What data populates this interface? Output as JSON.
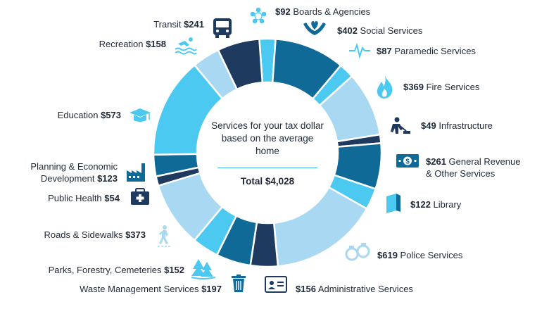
{
  "colors": {
    "dark_navy": "#1f3a5f",
    "teal_blue": "#0f6a98",
    "bright_cyan": "#4cc9f0",
    "light_blue": "#a8d8f2",
    "sky_blue": "#52c2ef",
    "icon_navy": "#1f3a5f",
    "icon_cyan": "#4cc9f0"
  },
  "chart_data": {
    "type": "pie",
    "center_text": "Services for your tax dollar based on the average home",
    "total_label": "Total $4,028",
    "slices": [
      {
        "name": "Boards & Agencies",
        "value": 92,
        "amount": "$92",
        "color": "#4cc9f0",
        "icon": "people-circle-icon"
      },
      {
        "name": "Social Services",
        "value": 402,
        "amount": "$402",
        "color": "#0f6a98",
        "icon": "caring-hands-icon"
      },
      {
        "name": "Paramedic Services",
        "value": 87,
        "amount": "$87",
        "color": "#4cc9f0",
        "icon": "heartbeat-icon"
      },
      {
        "name": "Fire Services",
        "value": 369,
        "amount": "$369",
        "color": "#a8d8f2",
        "icon": "flame-icon"
      },
      {
        "name": "Infrastructure",
        "value": 49,
        "amount": "$49",
        "color": "#1f3a5f",
        "icon": "worker-shovel-icon"
      },
      {
        "name": "General Revenue & Other Services",
        "value": 261,
        "amount": "$261",
        "color": "#0f6a98",
        "icon": "banknote-icon"
      },
      {
        "name": "Library",
        "value": 122,
        "amount": "$122",
        "color": "#4cc9f0",
        "icon": "book-icon"
      },
      {
        "name": "Police Services",
        "value": 619,
        "amount": "$619",
        "color": "#a8d8f2",
        "icon": "handcuffs-icon"
      },
      {
        "name": "Administrative Services",
        "value": 156,
        "amount": "$156",
        "color": "#1f3a5f",
        "icon": "id-card-icon"
      },
      {
        "name": "Waste Management Services",
        "value": 197,
        "amount": "$197",
        "color": "#0f6a98",
        "icon": "trash-bin-icon"
      },
      {
        "name": "Parks, Forestry, Cemeteries",
        "value": 152,
        "amount": "$152",
        "color": "#4cc9f0",
        "icon": "trees-icon"
      },
      {
        "name": "Roads & Sidewalks",
        "value": 373,
        "amount": "$373",
        "color": "#a8d8f2",
        "icon": "pedestrian-icon"
      },
      {
        "name": "Public Health",
        "value": 54,
        "amount": "$54",
        "color": "#1f3a5f",
        "icon": "medical-kit-icon"
      },
      {
        "name": "Planning & Economic Development",
        "value": 123,
        "amount": "$123",
        "color": "#0f6a98",
        "icon": "factory-icon"
      },
      {
        "name": "Education",
        "value": 573,
        "amount": "$573",
        "color": "#4cc9f0",
        "icon": "graduation-cap-icon"
      },
      {
        "name": "Recreation",
        "value": 158,
        "amount": "$158",
        "color": "#a8d8f2",
        "icon": "swimmer-icon"
      },
      {
        "name": "Transit",
        "value": 241,
        "amount": "$241",
        "color": "#1f3a5f",
        "icon": "bus-icon"
      }
    ]
  }
}
